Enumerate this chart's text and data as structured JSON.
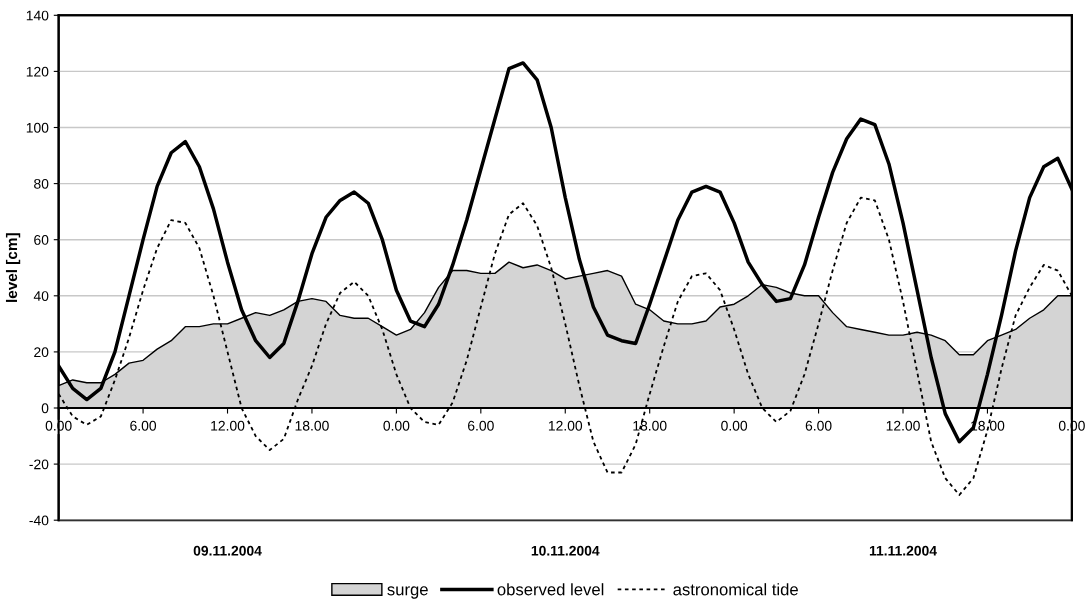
{
  "chart_data": {
    "type": "line",
    "ylabel": "level [cm]",
    "ylim": [
      -40,
      140
    ],
    "yticks": [
      -40,
      -20,
      0,
      20,
      40,
      60,
      80,
      100,
      120,
      140
    ],
    "xlim": [
      "2004-11-09T00:00",
      "2004-11-12T00:00"
    ],
    "xticks": [
      {
        "value": "2004-11-09T00:00",
        "label": "0.00"
      },
      {
        "value": "2004-11-09T06:00",
        "label": "6.00"
      },
      {
        "value": "2004-11-09T12:00",
        "label": "12.00"
      },
      {
        "value": "2004-11-09T18:00",
        "label": "18.00"
      },
      {
        "value": "2004-11-10T00:00",
        "label": "0.00"
      },
      {
        "value": "2004-11-10T06:00",
        "label": "6.00"
      },
      {
        "value": "2004-11-10T12:00",
        "label": "12.00"
      },
      {
        "value": "2004-11-10T18:00",
        "label": "18.00"
      },
      {
        "value": "2004-11-11T00:00",
        "label": "0.00"
      },
      {
        "value": "2004-11-11T06:00",
        "label": "6.00"
      },
      {
        "value": "2004-11-11T12:00",
        "label": "12.00"
      },
      {
        "value": "2004-11-11T18:00",
        "label": "18.00"
      },
      {
        "value": "2004-11-12T00:00",
        "label": "0.00"
      }
    ],
    "x": [
      "2004-11-09T00:00",
      "2004-11-09T01:00",
      "2004-11-09T02:00",
      "2004-11-09T03:00",
      "2004-11-09T04:00",
      "2004-11-09T05:00",
      "2004-11-09T06:00",
      "2004-11-09T07:00",
      "2004-11-09T08:00",
      "2004-11-09T09:00",
      "2004-11-09T10:00",
      "2004-11-09T11:00",
      "2004-11-09T12:00",
      "2004-11-09T13:00",
      "2004-11-09T14:00",
      "2004-11-09T15:00",
      "2004-11-09T16:00",
      "2004-11-09T17:00",
      "2004-11-09T18:00",
      "2004-11-09T19:00",
      "2004-11-09T20:00",
      "2004-11-09T21:00",
      "2004-11-09T22:00",
      "2004-11-09T23:00",
      "2004-11-10T00:00",
      "2004-11-10T01:00",
      "2004-11-10T02:00",
      "2004-11-10T03:00",
      "2004-11-10T04:00",
      "2004-11-10T05:00",
      "2004-11-10T06:00",
      "2004-11-10T07:00",
      "2004-11-10T08:00",
      "2004-11-10T09:00",
      "2004-11-10T10:00",
      "2004-11-10T11:00",
      "2004-11-10T12:00",
      "2004-11-10T13:00",
      "2004-11-10T14:00",
      "2004-11-10T15:00",
      "2004-11-10T16:00",
      "2004-11-10T17:00",
      "2004-11-10T18:00",
      "2004-11-10T19:00",
      "2004-11-10T20:00",
      "2004-11-10T21:00",
      "2004-11-10T22:00",
      "2004-11-10T23:00",
      "2004-11-11T00:00",
      "2004-11-11T01:00",
      "2004-11-11T02:00",
      "2004-11-11T03:00",
      "2004-11-11T04:00",
      "2004-11-11T05:00",
      "2004-11-11T06:00",
      "2004-11-11T07:00",
      "2004-11-11T08:00",
      "2004-11-11T09:00",
      "2004-11-11T10:00",
      "2004-11-11T11:00",
      "2004-11-11T12:00",
      "2004-11-11T13:00",
      "2004-11-11T14:00",
      "2004-11-11T15:00",
      "2004-11-11T16:00",
      "2004-11-11T17:00",
      "2004-11-11T18:00",
      "2004-11-11T19:00",
      "2004-11-11T20:00",
      "2004-11-11T21:00",
      "2004-11-11T22:00",
      "2004-11-11T23:00",
      "2004-11-12T00:00"
    ],
    "grid": "y",
    "legend": "bottom",
    "annotations": [
      "09.11.2004",
      "10.11.2004",
      "11.11.2004"
    ],
    "series": [
      {
        "name": "surge",
        "type": "area",
        "color": "#d4d4d4",
        "values": [
          8,
          10,
          9,
          9,
          12,
          16,
          17,
          21,
          24,
          29,
          29,
          30,
          30,
          32,
          34,
          33,
          35,
          38,
          39,
          38,
          33,
          32,
          32,
          29,
          26,
          28,
          34,
          43,
          49,
          49,
          48,
          48,
          52,
          50,
          51,
          49,
          46,
          47,
          48,
          49,
          47,
          37,
          35,
          31,
          30,
          30,
          31,
          36,
          37,
          40,
          44,
          43,
          41,
          40,
          40,
          34,
          29,
          28,
          27,
          26,
          26,
          27,
          26,
          24,
          19,
          19,
          24,
          26,
          28,
          32,
          35,
          40,
          40
        ]
      },
      {
        "name": "observed level",
        "color": "#000000",
        "line_style": "solid",
        "values": [
          15,
          7,
          3,
          7,
          20,
          40,
          60,
          79,
          91,
          95,
          86,
          71,
          52,
          35,
          24,
          18,
          23,
          38,
          55,
          68,
          74,
          77,
          73,
          60,
          42,
          31,
          29,
          37,
          51,
          67,
          85,
          103,
          121,
          123,
          117,
          100,
          75,
          53,
          36,
          26,
          24,
          23,
          37,
          52,
          67,
          77,
          79,
          77,
          66,
          52,
          44,
          38,
          39,
          51,
          68,
          84,
          96,
          103,
          101,
          87,
          66,
          42,
          18,
          -2,
          -12,
          -7,
          12,
          33,
          56,
          75,
          86,
          89,
          78
        ]
      },
      {
        "name": "astronomical tide",
        "color": "#000000",
        "line_style": "dotted",
        "values": [
          5,
          -3,
          -6,
          -3,
          10,
          25,
          42,
          57,
          67,
          66,
          57,
          40,
          20,
          0,
          -10,
          -15,
          -11,
          3,
          15,
          30,
          41,
          45,
          40,
          28,
          12,
          0,
          -5,
          -6,
          2,
          17,
          36,
          55,
          69,
          73,
          65,
          50,
          30,
          8,
          -12,
          -23,
          -23,
          -13,
          5,
          22,
          38,
          47,
          48,
          42,
          28,
          12,
          0,
          -5,
          -1,
          12,
          30,
          49,
          66,
          75,
          74,
          60,
          38,
          13,
          -12,
          -25,
          -31,
          -25,
          -8,
          14,
          33,
          43,
          51,
          49,
          40
        ]
      }
    ]
  }
}
